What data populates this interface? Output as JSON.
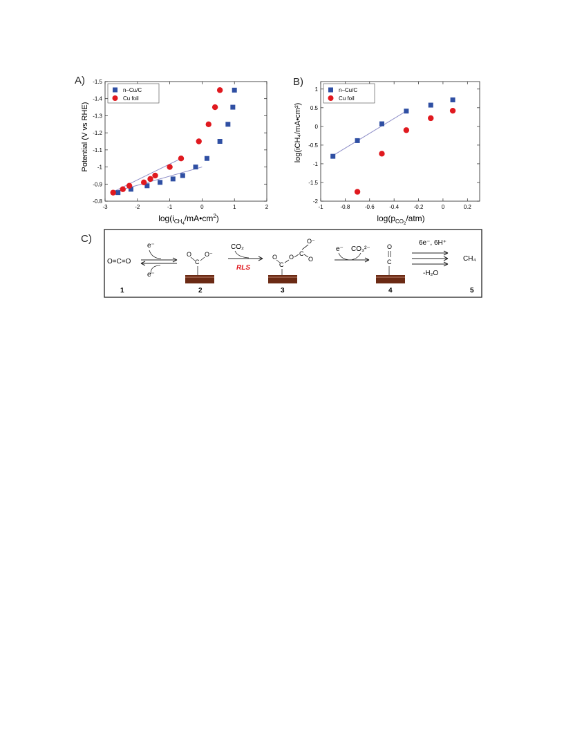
{
  "colors": {
    "ncu": "#2f4fa3",
    "foil": "#e0191f",
    "fit": "#8f8fc8",
    "copper": "#6b2a14"
  },
  "chart_data": [
    {
      "type": "scatter",
      "panel": "A)",
      "xlabel_main": "log(i",
      "xlabel_sub": "CH",
      "xlabel_subsub": "4",
      "xlabel_rest": "/mA•cm",
      "xlabel_sup": "2",
      "xlabel_end": ")",
      "ylabel": "Potential (V vs RHE)",
      "xlim": [
        -3,
        2
      ],
      "ylim": [
        -0.8,
        -1.5
      ],
      "y_inverted": true,
      "xticks": [
        "-3",
        "-2",
        "-1",
        "0",
        "1",
        "2"
      ],
      "yticks": [
        "-0.8",
        "-0.9",
        "-1",
        "-1.1",
        "-1.2",
        "-1.3",
        "-1.4",
        "-1.5"
      ],
      "legend_position": "top-left",
      "series": [
        {
          "name": "n–Cu/C",
          "marker": "square",
          "x": [
            -2.6,
            -2.2,
            -1.7,
            -1.3,
            -0.9,
            -0.6,
            -0.2,
            0.15,
            0.55,
            0.8,
            0.95,
            1.0
          ],
          "y": [
            -0.85,
            -0.87,
            -0.89,
            -0.91,
            -0.93,
            -0.95,
            -1.0,
            -1.05,
            -1.15,
            -1.25,
            -1.35,
            -1.45
          ]
        },
        {
          "name": "Cu foil",
          "marker": "circle",
          "x": [
            -2.75,
            -2.45,
            -2.25,
            -1.8,
            -1.6,
            -1.45,
            -0.65,
            -1.0,
            -0.1,
            0.2,
            0.4,
            0.55
          ],
          "y": [
            -0.85,
            -0.87,
            -0.89,
            -0.91,
            -0.93,
            -0.95,
            -1.05,
            -1.0,
            -1.15,
            -1.25,
            -1.35,
            -1.45
          ]
        }
      ],
      "fit_lines": [
        {
          "series": "n–Cu/C",
          "x": [
            -2.8,
            0.0
          ],
          "y": [
            -0.85,
            -1.0
          ]
        },
        {
          "series": "Cu foil",
          "x": [
            -2.8,
            -0.65
          ],
          "y": [
            -0.85,
            -1.05
          ]
        }
      ]
    },
    {
      "type": "scatter",
      "panel": "B)",
      "xlabel_main": "log(p",
      "xlabel_sub": "CO",
      "xlabel_subsub": "2",
      "xlabel_rest": "/atm)",
      "ylabel": "log(iCH₄/mA•cm²)",
      "xlim": [
        -1,
        0.3
      ],
      "ylim": [
        -2,
        1.2
      ],
      "xticks": [
        "-1",
        "-0.8",
        "-0.6",
        "-0.4",
        "-0.2",
        "0",
        "0.2"
      ],
      "yticks": [
        "-2",
        "-1.5",
        "-1",
        "-0.5",
        "0",
        "0.5",
        "1"
      ],
      "legend_position": "top-left",
      "series": [
        {
          "name": "n–Cu/C",
          "marker": "square",
          "x": [
            -0.9,
            -0.7,
            -0.5,
            -0.3,
            -0.1,
            0.08
          ],
          "y": [
            -0.8,
            -0.38,
            0.07,
            0.41,
            0.57,
            0.71
          ]
        },
        {
          "name": "Cu foil",
          "marker": "circle",
          "x": [
            -0.7,
            -0.5,
            -0.3,
            -0.1,
            0.08
          ],
          "y": [
            -1.75,
            -0.73,
            -0.1,
            0.22,
            0.42
          ]
        }
      ],
      "fit_lines": [
        {
          "series": "n–Cu/C",
          "x": [
            -0.92,
            -0.3
          ],
          "y": [
            -0.82,
            0.41
          ]
        }
      ]
    }
  ],
  "scheme": {
    "panel": "C)",
    "co2": "O=C=O",
    "e_top": "e⁻",
    "e_bottom": "e⁻",
    "co2_reagent": "CO₂",
    "rls": "RLS",
    "e_3": "e⁻",
    "carbonate": "CO₃²⁻",
    "step4_top": "6e⁻, 6H⁺",
    "step4_bottom": "-H₂O",
    "product": "CH₄",
    "numbers": [
      "1",
      "2",
      "3",
      "4",
      "5"
    ]
  }
}
